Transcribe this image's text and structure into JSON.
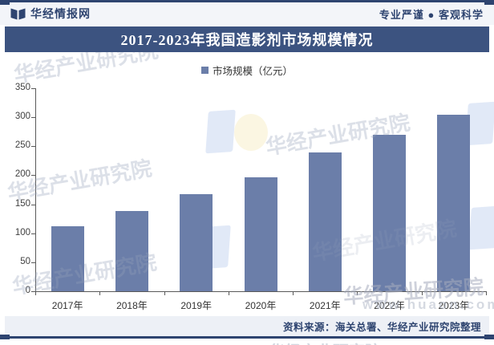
{
  "header": {
    "brand": "华经情报网",
    "slogan": "专业严谨 ● 客观科学"
  },
  "banner": {
    "title": "2017-2023年我国造影剂市场规模情况"
  },
  "legend": {
    "label": "市场规模（亿元）"
  },
  "chart_data": {
    "type": "bar",
    "title": "2017-2023年我国造影剂市场规模情况",
    "series_name": "市场规模（亿元）",
    "categories": [
      "2017年",
      "2018年",
      "2019年",
      "2020年",
      "2021年",
      "2022年",
      "2023年"
    ],
    "values": [
      112,
      138,
      167,
      197,
      239,
      270,
      305
    ],
    "xlabel": "",
    "ylabel": "",
    "ylim": [
      0,
      350
    ],
    "yticks": [
      0,
      50,
      100,
      150,
      200,
      250,
      300,
      350
    ],
    "grid": false,
    "legend_position": "top-center",
    "bar_color": "#6b7ea9"
  },
  "footer": {
    "source": "资料来源：海关总署、华经产业研究院整理"
  },
  "watermark": {
    "brand": "华经产业研究院",
    "site": "www.huaon.com"
  },
  "colors": {
    "banner_bg": "#3c5380",
    "frame_border": "#2e4470",
    "bar": "#6b7ea9",
    "header_bg": "#f3f5f9",
    "footer_bg": "#edf0f6",
    "header_text": "#2e4470",
    "axis": "#595959"
  }
}
